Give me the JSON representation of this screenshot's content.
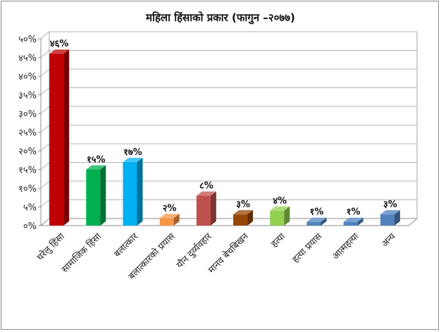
{
  "chart_data": {
    "type": "bar",
    "title": "महिला हिंसाको प्रकार (फागुन –२०७७)",
    "categories": [
      "घरेलु हिंसा",
      "सामाजिक हिंसा",
      "बलात्कार",
      "बलात्कारको प्रयास",
      "यौन दुर्व्यवहार",
      "मानव बेचबिखन",
      "हत्या",
      "हत्या प्रयास",
      "आत्महत्या",
      "अन्य"
    ],
    "values": [
      46,
      15,
      17,
      2,
      8,
      3,
      4,
      1,
      1,
      3
    ],
    "data_labels": [
      "४६%",
      "१५%",
      "१७%",
      "२%",
      "८%",
      "३%",
      "४%",
      "१%",
      "१%",
      "३%"
    ],
    "colors": [
      "#c00000",
      "#00b050",
      "#00b0f0",
      "#f79646",
      "#c0504d",
      "#974706",
      "#92d050",
      "#4f81bd",
      "#4f81bd",
      "#4f81bd"
    ],
    "ylim": [
      0,
      50
    ],
    "yticks": [
      0,
      5,
      10,
      15,
      20,
      25,
      30,
      35,
      40,
      45,
      50
    ],
    "ytick_labels": [
      "०%",
      "५%",
      "१०%",
      "१५%",
      "२०%",
      "२५%",
      "३०%",
      "३५%",
      "४०%",
      "४५%",
      "५०%"
    ],
    "grid": true,
    "xlabel": "",
    "ylabel": ""
  }
}
